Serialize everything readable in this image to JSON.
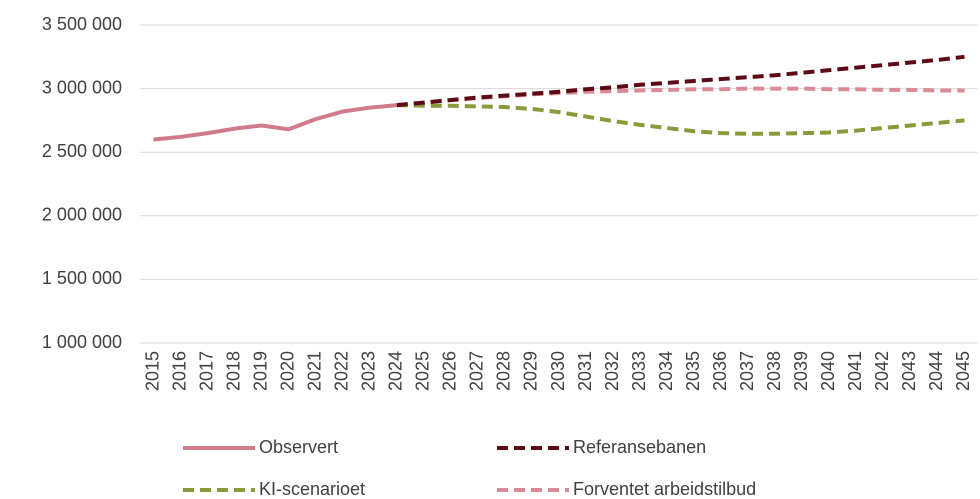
{
  "chart_data": {
    "type": "line",
    "x": [
      2015,
      2016,
      2017,
      2018,
      2019,
      2020,
      2021,
      2022,
      2023,
      2024,
      2025,
      2026,
      2027,
      2028,
      2029,
      2030,
      2031,
      2032,
      2033,
      2034,
      2035,
      2036,
      2037,
      2038,
      2039,
      2040,
      2041,
      2042,
      2043,
      2044,
      2045
    ],
    "xlim": [
      2014.5,
      2045.5
    ],
    "xticks": [
      2015,
      2016,
      2017,
      2018,
      2019,
      2020,
      2021,
      2022,
      2023,
      2024,
      2025,
      2026,
      2027,
      2028,
      2029,
      2030,
      2031,
      2032,
      2033,
      2034,
      2035,
      2036,
      2037,
      2038,
      2039,
      2040,
      2041,
      2042,
      2043,
      2044,
      2045
    ],
    "ylim": [
      1000000,
      3500000
    ],
    "yticks": [
      {
        "value": 1000000,
        "label": "1 000 000"
      },
      {
        "value": 1500000,
        "label": "1 500 000"
      },
      {
        "value": 2000000,
        "label": "2 000 000"
      },
      {
        "value": 2500000,
        "label": "2 500 000"
      },
      {
        "value": 3000000,
        "label": "3 000 000"
      },
      {
        "value": 3500000,
        "label": "3 500 000"
      }
    ],
    "grid": true,
    "legend": "bottom",
    "series": [
      {
        "name": "Observert",
        "color": "#d07b8a",
        "dashed": false,
        "values": [
          2600000,
          2620000,
          2650000,
          2685000,
          2710000,
          2680000,
          2760000,
          2820000,
          2850000,
          2870000,
          null,
          null,
          null,
          null,
          null,
          null,
          null,
          null,
          null,
          null,
          null,
          null,
          null,
          null,
          null,
          null,
          null,
          null,
          null,
          null,
          null
        ]
      },
      {
        "name": "Referansebanen",
        "color": "#5c0a14",
        "dashed": true,
        "values": [
          null,
          null,
          null,
          null,
          null,
          null,
          null,
          null,
          null,
          2870000,
          2890000,
          2910000,
          2930000,
          2945000,
          2960000,
          2975000,
          2995000,
          3010000,
          3030000,
          3045000,
          3060000,
          3075000,
          3090000,
          3105000,
          3125000,
          3145000,
          3165000,
          3185000,
          3205000,
          3225000,
          3250000
        ]
      },
      {
        "name": "KI-scenarioet",
        "color": "#8a9a3a",
        "dashed": true,
        "values": [
          null,
          null,
          null,
          null,
          null,
          null,
          null,
          null,
          null,
          2870000,
          2865000,
          2865000,
          2860000,
          2855000,
          2840000,
          2815000,
          2780000,
          2745000,
          2715000,
          2690000,
          2665000,
          2650000,
          2645000,
          2645000,
          2650000,
          2655000,
          2670000,
          2690000,
          2710000,
          2730000,
          2750000
        ]
      },
      {
        "name": "Forventet arbeidstilbud",
        "color": "#d98a96",
        "dashed": true,
        "values": [
          null,
          null,
          null,
          null,
          null,
          null,
          null,
          null,
          null,
          2870000,
          2890000,
          2910000,
          2925000,
          2940000,
          2955000,
          2965000,
          2975000,
          2980000,
          2985000,
          2990000,
          2995000,
          2995000,
          3000000,
          3000000,
          3000000,
          2995000,
          2995000,
          2990000,
          2990000,
          2985000,
          2985000
        ]
      }
    ]
  }
}
